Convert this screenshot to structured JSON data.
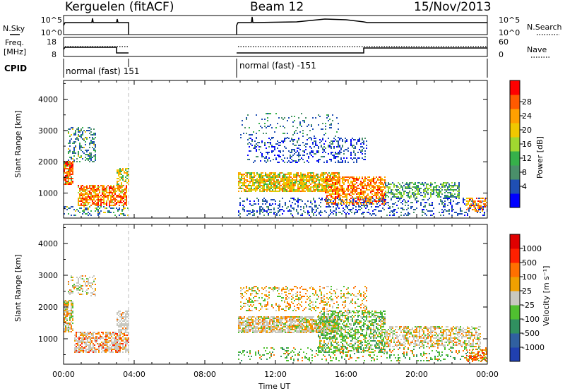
{
  "header": {
    "station": "Kerguelen (fitACF)",
    "beam": "Beam 12",
    "date": "15/Nov/2013"
  },
  "status_panels": {
    "nsky_label": "N.Sky",
    "nsearch_label": "N.Search",
    "noise_ticks": [
      "10^5",
      "10^0"
    ],
    "freq_label_line1": "Freq.",
    "freq_label_line2": "[MHz]",
    "freq_ticks": [
      "18",
      "8"
    ],
    "nave_ticks": [
      "60",
      "0"
    ],
    "nave_label": "Nave",
    "cpid_label": "CPID",
    "cpid_segments": [
      {
        "label": "normal (fast) 151",
        "start_hour": 0.0,
        "end_hour": 3.75
      },
      {
        "label": "normal (fast) -151",
        "start_hour": 9.75,
        "end_hour": 24.0
      }
    ]
  },
  "chart_data": [
    {
      "type": "heatmap",
      "name": "power",
      "ylabel": "Slant Range [km]",
      "colorbar_label": "Power [dB]",
      "colorbar_ticks": [
        "28",
        "24",
        "20",
        "16",
        "12",
        "8",
        "4"
      ],
      "colors": [
        "#0000ff",
        "#1f4fb4",
        "#4a8f6a",
        "#36b04a",
        "#a0d830",
        "#f0c800",
        "#ffa000",
        "#ff5a00",
        "#ff0000"
      ],
      "xlim": [
        0,
        24
      ],
      "ylim": [
        200,
        4600
      ],
      "yticks": [
        1000,
        2000,
        3000,
        4000
      ],
      "gaps_hours": [
        [
          3.75,
          9.75
        ]
      ]
    },
    {
      "type": "heatmap",
      "name": "velocity",
      "ylabel": "Slant Range [km]",
      "colorbar_label": "Velocity [m s⁻¹]",
      "colorbar_ticks": [
        "1000",
        "500",
        "100",
        "25",
        "-25",
        "-100",
        "-500",
        "-1000"
      ],
      "colors": [
        "#2040b0",
        "#3060a0",
        "#309060",
        "#50c030",
        "#c8c8c0",
        "#f0a000",
        "#ff7000",
        "#ff2000",
        "#e00000"
      ],
      "xlim": [
        0,
        24
      ],
      "ylim": [
        200,
        4600
      ],
      "yticks": [
        1000,
        2000,
        3000,
        4000
      ],
      "gaps_hours": [
        [
          3.75,
          9.75
        ]
      ]
    }
  ],
  "x_axis": {
    "ticks": [
      "00:00",
      "04:00",
      "08:00",
      "12:00",
      "16:00",
      "20:00",
      "00:00"
    ],
    "label": "Time UT"
  }
}
